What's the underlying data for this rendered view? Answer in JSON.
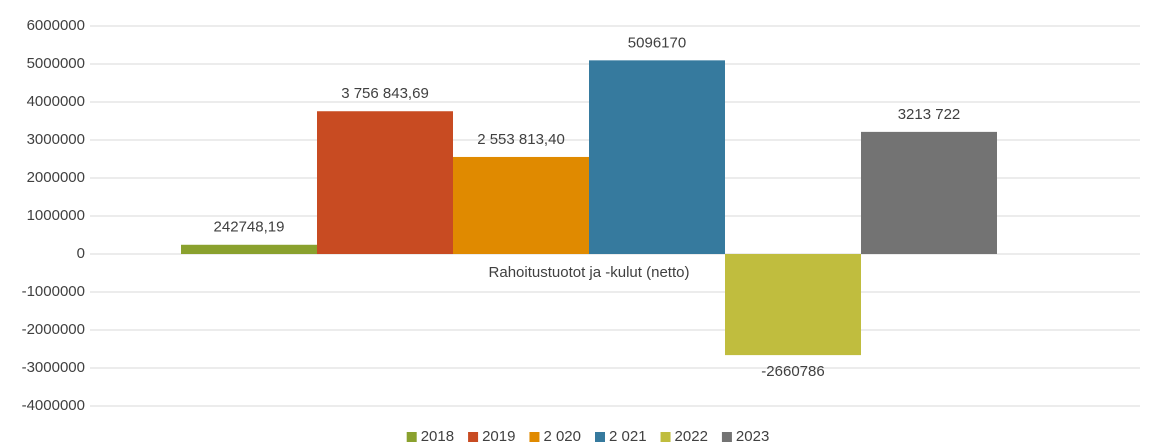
{
  "chart_data": {
    "type": "bar",
    "categories": [
      "Rahoitustuotot ja -kulut (netto)"
    ],
    "series": [
      {
        "name": "2018",
        "color": "#8aa12e",
        "values": [
          242748.19
        ],
        "value_labels": [
          "242748,19"
        ]
      },
      {
        "name": "2019",
        "color": "#c84b22",
        "values": [
          3756843.69
        ],
        "value_labels": [
          "3 756 843,69"
        ]
      },
      {
        "name": "2 020",
        "color": "#e08a00",
        "values": [
          2553813.4
        ],
        "value_labels": [
          "2 553 813,40"
        ]
      },
      {
        "name": "2 021",
        "color": "#367a9e",
        "values": [
          5096170
        ],
        "value_labels": [
          "5096170"
        ]
      },
      {
        "name": "2022",
        "color": "#c0bd3e",
        "values": [
          -2660786
        ],
        "value_labels": [
          "-2660786"
        ]
      },
      {
        "name": "2023",
        "color": "#737373",
        "values": [
          3213722
        ],
        "value_labels": [
          "3213 722"
        ]
      }
    ],
    "ylim": [
      -4000000,
      6000000
    ],
    "yticks": [
      -4000000,
      -3000000,
      -2000000,
      -1000000,
      0,
      1000000,
      2000000,
      3000000,
      4000000,
      5000000,
      6000000
    ],
    "grid": true,
    "legend": "bottom"
  }
}
